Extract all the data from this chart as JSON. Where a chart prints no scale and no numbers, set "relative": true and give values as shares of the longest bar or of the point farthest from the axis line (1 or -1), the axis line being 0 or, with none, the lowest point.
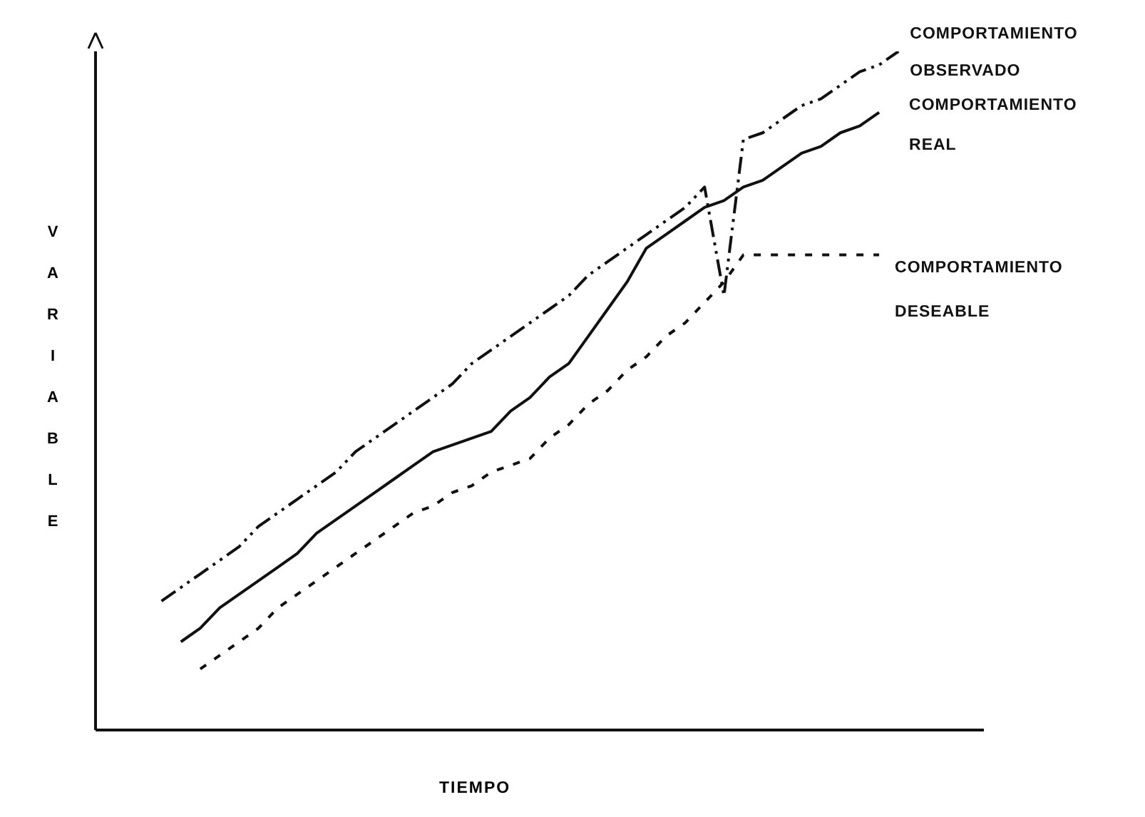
{
  "chart_data": {
    "type": "line",
    "relative": true,
    "xlabel": "TIEMPO",
    "ylabel": "VARIABLE",
    "legend": false,
    "grid": false,
    "marker": "none",
    "tick_labels": false,
    "categories": [
      null,
      null,
      null,
      null,
      null,
      null,
      null,
      null,
      null,
      null,
      null,
      null,
      null,
      null,
      null,
      null,
      null,
      null,
      null,
      null,
      null,
      null,
      null,
      null,
      null,
      null,
      null,
      null,
      null,
      null,
      null,
      null,
      null,
      null,
      null,
      null,
      null,
      null,
      null
    ],
    "series": [
      {
        "name": "COMPORTAMIENTO OBSERVADO",
        "color": "#111111",
        "line_style": "dashed",
        "values": [
          0.19,
          0.21,
          0.23,
          0.25,
          0.27,
          0.3,
          0.32,
          0.34,
          0.36,
          0.38,
          0.41,
          0.43,
          0.45,
          0.47,
          0.49,
          0.51,
          0.54,
          0.56,
          0.58,
          0.6,
          0.62,
          0.64,
          0.67,
          0.69,
          0.71,
          0.73,
          0.75,
          0.77,
          0.8,
          0.64,
          0.87,
          0.88,
          0.9,
          0.92,
          0.93,
          0.95,
          0.97,
          0.98,
          1.0
        ]
      },
      {
        "name": "COMPORTAMIENTO REAL",
        "color": "#111111",
        "line_style": "solid",
        "values": [
          null,
          0.13,
          0.15,
          0.18,
          0.2,
          0.22,
          0.24,
          0.26,
          0.29,
          0.31,
          0.33,
          0.35,
          0.37,
          0.39,
          0.41,
          0.42,
          0.43,
          0.44,
          0.47,
          0.49,
          0.52,
          0.54,
          0.58,
          0.62,
          0.66,
          0.71,
          0.73,
          0.75,
          0.77,
          0.78,
          0.8,
          0.81,
          0.83,
          0.85,
          0.86,
          0.88,
          0.89,
          0.91,
          null
        ]
      },
      {
        "name": "COMPORTAMIENTO DESEABLE",
        "color": "#111111",
        "line_style": "dotted",
        "values": [
          null,
          null,
          0.09,
          0.11,
          0.13,
          0.15,
          0.18,
          0.2,
          0.22,
          0.24,
          0.26,
          0.28,
          0.3,
          0.32,
          0.33,
          0.35,
          0.36,
          0.38,
          0.39,
          0.4,
          0.43,
          0.45,
          0.48,
          0.5,
          0.53,
          0.55,
          0.58,
          0.6,
          0.63,
          0.66,
          0.7,
          0.7,
          0.7,
          0.7,
          0.7,
          0.7,
          0.7,
          0.7,
          null
        ]
      }
    ]
  }
}
